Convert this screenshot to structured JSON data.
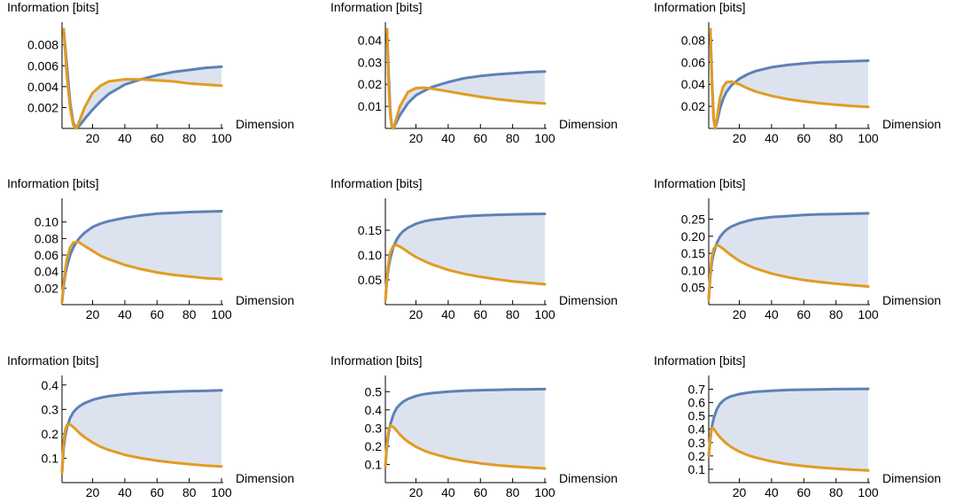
{
  "colors": {
    "blue": "#5e81b5",
    "orange": "#e19c24",
    "fill": "#dce3ef"
  },
  "chart_data": [
    {
      "type": "line",
      "ylabel": "Information [bits]",
      "xlabel": "Dimension",
      "xlim": [
        1,
        100
      ],
      "ylim": [
        0,
        0.0095
      ],
      "xticks": [
        20,
        40,
        60,
        80,
        100
      ],
      "yticks": [
        0.002,
        0.004,
        0.006,
        0.008
      ],
      "ytick_labels": [
        "0.002",
        "0.004",
        "0.006",
        "0.008"
      ],
      "series": [
        {
          "x": [
            2,
            4,
            6,
            8,
            10,
            12,
            15,
            20,
            25,
            30,
            40,
            50,
            60,
            70,
            80,
            90,
            100
          ],
          "values": [
            0.0095,
            0.006,
            0.0025,
            0.0005,
            0,
            0.0003,
            0.0009,
            0.0018,
            0.0026,
            0.0033,
            0.0042,
            0.0047,
            0.0051,
            0.0054,
            0.0056,
            0.0058,
            0.0059
          ]
        },
        {
          "x": [
            2,
            4,
            6,
            8,
            10,
            12,
            15,
            20,
            25,
            30,
            40,
            50,
            60,
            70,
            80,
            90,
            100
          ],
          "values": [
            0.0095,
            0.005,
            0.002,
            0.0003,
            0,
            0.0008,
            0.002,
            0.0034,
            0.0041,
            0.0045,
            0.0047,
            0.0047,
            0.0046,
            0.0045,
            0.0043,
            0.0042,
            0.0041
          ]
        }
      ]
    },
    {
      "type": "line",
      "ylabel": "Information [bits]",
      "xlabel": "Dimension",
      "xlim": [
        1,
        100
      ],
      "ylim": [
        0,
        0.045
      ],
      "xticks": [
        20,
        40,
        60,
        80,
        100
      ],
      "yticks": [
        0.01,
        0.02,
        0.03,
        0.04
      ],
      "ytick_labels": [
        "0.01",
        "0.02",
        "0.03",
        "0.04"
      ],
      "series": [
        {
          "x": [
            2,
            3,
            4,
            5,
            6,
            8,
            10,
            15,
            20,
            25,
            30,
            40,
            50,
            60,
            70,
            80,
            90,
            100
          ],
          "values": [
            0.045,
            0.025,
            0.008,
            0.001,
            0,
            0.003,
            0.006,
            0.0115,
            0.015,
            0.017,
            0.0188,
            0.021,
            0.0228,
            0.0238,
            0.0245,
            0.025,
            0.0255,
            0.0258
          ]
        },
        {
          "x": [
            2,
            3,
            4,
            5,
            6,
            8,
            10,
            15,
            20,
            25,
            30,
            40,
            50,
            60,
            70,
            80,
            90,
            100
          ],
          "values": [
            0.045,
            0.02,
            0.006,
            0.001,
            0,
            0.005,
            0.01,
            0.0165,
            0.0183,
            0.0185,
            0.018,
            0.0168,
            0.0155,
            0.0143,
            0.0133,
            0.0125,
            0.0118,
            0.0113
          ]
        }
      ]
    },
    {
      "type": "line",
      "ylabel": "Information [bits]",
      "xlabel": "Dimension",
      "xlim": [
        1,
        100
      ],
      "ylim": [
        0,
        0.09
      ],
      "xticks": [
        20,
        40,
        60,
        80,
        100
      ],
      "yticks": [
        0.02,
        0.04,
        0.06,
        0.08
      ],
      "ytick_labels": [
        "0.02",
        "0.04",
        "0.06",
        "0.08"
      ],
      "series": [
        {
          "x": [
            2,
            3,
            4,
            5,
            6,
            8,
            10,
            12,
            15,
            20,
            25,
            30,
            40,
            50,
            60,
            70,
            80,
            90,
            100
          ],
          "values": [
            0.09,
            0.045,
            0.01,
            0,
            0.005,
            0.018,
            0.027,
            0.033,
            0.039,
            0.045,
            0.049,
            0.052,
            0.0555,
            0.0575,
            0.059,
            0.06,
            0.0605,
            0.061,
            0.0615
          ]
        },
        {
          "x": [
            2,
            3,
            4,
            5,
            6,
            8,
            10,
            12,
            15,
            20,
            25,
            30,
            40,
            50,
            60,
            70,
            80,
            90,
            100
          ],
          "values": [
            0.09,
            0.04,
            0.008,
            0,
            0.008,
            0.028,
            0.038,
            0.042,
            0.0425,
            0.04,
            0.0365,
            0.0335,
            0.0295,
            0.0265,
            0.0245,
            0.0228,
            0.0215,
            0.0203,
            0.0195
          ]
        }
      ]
    },
    {
      "type": "line",
      "ylabel": "Information [bits]",
      "xlabel": "Dimension",
      "xlim": [
        1,
        100
      ],
      "ylim": [
        0,
        0.12
      ],
      "xticks": [
        20,
        40,
        60,
        80,
        100
      ],
      "yticks": [
        0.02,
        0.04,
        0.06,
        0.08,
        0.1
      ],
      "ytick_labels": [
        "0.02",
        "0.04",
        "0.06",
        "0.08",
        "0.10"
      ],
      "series": [
        {
          "x": [
            1,
            2,
            3,
            4,
            6,
            8,
            10,
            12,
            15,
            20,
            25,
            30,
            40,
            50,
            60,
            70,
            80,
            90,
            100
          ],
          "values": [
            0.003,
            0.022,
            0.036,
            0.046,
            0.06,
            0.069,
            0.076,
            0.081,
            0.087,
            0.094,
            0.098,
            0.101,
            0.105,
            0.108,
            0.11,
            0.111,
            0.112,
            0.1125,
            0.113
          ]
        },
        {
          "x": [
            1,
            2,
            3,
            4,
            6,
            8,
            10,
            12,
            15,
            20,
            25,
            30,
            40,
            50,
            60,
            70,
            80,
            90,
            100
          ],
          "values": [
            0.003,
            0.025,
            0.042,
            0.055,
            0.069,
            0.075,
            0.076,
            0.075,
            0.071,
            0.065,
            0.059,
            0.055,
            0.048,
            0.043,
            0.039,
            0.036,
            0.034,
            0.032,
            0.031
          ]
        }
      ]
    },
    {
      "type": "line",
      "ylabel": "Information [bits]",
      "xlabel": "Dimension",
      "xlim": [
        1,
        100
      ],
      "ylim": [
        0,
        0.2
      ],
      "xticks": [
        20,
        40,
        60,
        80,
        100
      ],
      "yticks": [
        0.05,
        0.1,
        0.15
      ],
      "ytick_labels": [
        "0.05",
        "0.10",
        "0.15"
      ],
      "series": [
        {
          "x": [
            1,
            2,
            3,
            4,
            6,
            8,
            10,
            12,
            15,
            20,
            25,
            30,
            40,
            50,
            60,
            70,
            80,
            90,
            100
          ],
          "values": [
            0.008,
            0.05,
            0.075,
            0.093,
            0.117,
            0.131,
            0.141,
            0.148,
            0.155,
            0.163,
            0.168,
            0.171,
            0.175,
            0.178,
            0.18,
            0.181,
            0.182,
            0.1825,
            0.183
          ]
        },
        {
          "x": [
            1,
            2,
            3,
            4,
            6,
            8,
            10,
            12,
            15,
            20,
            25,
            30,
            40,
            50,
            60,
            70,
            80,
            90,
            100
          ],
          "values": [
            0.008,
            0.055,
            0.085,
            0.105,
            0.119,
            0.12,
            0.117,
            0.113,
            0.106,
            0.096,
            0.088,
            0.081,
            0.07,
            0.062,
            0.056,
            0.051,
            0.047,
            0.044,
            0.041
          ]
        }
      ]
    },
    {
      "type": "line",
      "ylabel": "Information [bits]",
      "xlabel": "Dimension",
      "xlim": [
        1,
        100
      ],
      "ylim": [
        0,
        0.29
      ],
      "xticks": [
        20,
        40,
        60,
        80,
        100
      ],
      "yticks": [
        0.05,
        0.1,
        0.15,
        0.2,
        0.25
      ],
      "ytick_labels": [
        "0.05",
        "0.10",
        "0.15",
        "0.20",
        "0.25"
      ],
      "series": [
        {
          "x": [
            1,
            2,
            3,
            4,
            6,
            8,
            10,
            12,
            15,
            20,
            25,
            30,
            40,
            50,
            60,
            70,
            80,
            90,
            100
          ],
          "values": [
            0.015,
            0.085,
            0.125,
            0.15,
            0.18,
            0.198,
            0.21,
            0.219,
            0.228,
            0.238,
            0.245,
            0.25,
            0.256,
            0.259,
            0.262,
            0.264,
            0.265,
            0.266,
            0.267
          ]
        },
        {
          "x": [
            1,
            2,
            3,
            4,
            6,
            8,
            10,
            12,
            15,
            20,
            25,
            30,
            40,
            50,
            60,
            70,
            80,
            90,
            100
          ],
          "values": [
            0.015,
            0.095,
            0.14,
            0.163,
            0.174,
            0.17,
            0.163,
            0.155,
            0.144,
            0.128,
            0.116,
            0.106,
            0.091,
            0.08,
            0.072,
            0.066,
            0.061,
            0.057,
            0.053
          ]
        }
      ]
    },
    {
      "type": "line",
      "ylabel": "Information [bits]",
      "xlabel": "Dimension",
      "xlim": [
        1,
        100
      ],
      "ylim": [
        0,
        0.41
      ],
      "xticks": [
        20,
        40,
        60,
        80,
        100
      ],
      "yticks": [
        0.1,
        0.2,
        0.3,
        0.4
      ],
      "ytick_labels": [
        "0.1",
        "0.2",
        "0.3",
        "0.4"
      ],
      "series": [
        {
          "x": [
            1,
            2,
            3,
            4,
            6,
            8,
            10,
            12,
            15,
            20,
            25,
            30,
            40,
            50,
            60,
            70,
            80,
            90,
            100
          ],
          "values": [
            0.04,
            0.14,
            0.19,
            0.225,
            0.265,
            0.288,
            0.303,
            0.314,
            0.326,
            0.339,
            0.348,
            0.354,
            0.362,
            0.367,
            0.37,
            0.373,
            0.375,
            0.376,
            0.378
          ]
        },
        {
          "x": [
            1,
            2,
            3,
            4,
            6,
            8,
            10,
            12,
            15,
            20,
            25,
            30,
            40,
            50,
            60,
            70,
            80,
            90,
            100
          ],
          "values": [
            0.04,
            0.16,
            0.215,
            0.237,
            0.238,
            0.228,
            0.215,
            0.202,
            0.186,
            0.164,
            0.147,
            0.134,
            0.114,
            0.1,
            0.09,
            0.082,
            0.076,
            0.07,
            0.066
          ]
        }
      ]
    },
    {
      "type": "line",
      "ylabel": "Information [bits]",
      "xlabel": "Dimension",
      "xlim": [
        1,
        100
      ],
      "ylim": [
        0,
        0.55
      ],
      "xticks": [
        20,
        40,
        60,
        80,
        100
      ],
      "yticks": [
        0.1,
        0.2,
        0.3,
        0.4,
        0.5
      ],
      "ytick_labels": [
        "0.1",
        "0.2",
        "0.3",
        "0.4",
        "0.5"
      ],
      "series": [
        {
          "x": [
            1,
            2,
            3,
            4,
            6,
            8,
            10,
            12,
            15,
            20,
            25,
            30,
            40,
            50,
            60,
            70,
            80,
            90,
            100
          ],
          "values": [
            0.09,
            0.2,
            0.27,
            0.32,
            0.375,
            0.41,
            0.43,
            0.445,
            0.46,
            0.476,
            0.486,
            0.492,
            0.5,
            0.505,
            0.508,
            0.51,
            0.512,
            0.513,
            0.514
          ]
        },
        {
          "x": [
            1,
            2,
            3,
            4,
            6,
            8,
            10,
            12,
            15,
            20,
            25,
            30,
            40,
            50,
            60,
            70,
            80,
            90,
            100
          ],
          "values": [
            0.09,
            0.22,
            0.29,
            0.315,
            0.305,
            0.285,
            0.265,
            0.247,
            0.225,
            0.197,
            0.176,
            0.16,
            0.136,
            0.119,
            0.106,
            0.096,
            0.089,
            0.083,
            0.078
          ]
        }
      ]
    },
    {
      "type": "line",
      "ylabel": "Information [bits]",
      "xlabel": "Dimension",
      "xlim": [
        1,
        100
      ],
      "ylim": [
        0,
        0.75
      ],
      "xticks": [
        20,
        40,
        60,
        80,
        100
      ],
      "yticks": [
        0.1,
        0.2,
        0.3,
        0.4,
        0.5,
        0.6,
        0.7
      ],
      "ytick_labels": [
        "0.1",
        "0.2",
        "0.3",
        "0.4",
        "0.5",
        "0.6",
        "0.7"
      ],
      "series": [
        {
          "x": [
            1,
            2,
            3,
            4,
            6,
            8,
            10,
            12,
            15,
            20,
            25,
            30,
            40,
            50,
            60,
            70,
            80,
            90,
            100
          ],
          "values": [
            0.2,
            0.33,
            0.42,
            0.48,
            0.55,
            0.59,
            0.615,
            0.632,
            0.648,
            0.664,
            0.674,
            0.681,
            0.689,
            0.694,
            0.697,
            0.699,
            0.701,
            0.702,
            0.703
          ]
        },
        {
          "x": [
            1,
            2,
            3,
            4,
            6,
            8,
            10,
            12,
            15,
            20,
            25,
            30,
            40,
            50,
            60,
            70,
            80,
            90,
            100
          ],
          "values": [
            0.2,
            0.35,
            0.41,
            0.405,
            0.37,
            0.34,
            0.315,
            0.293,
            0.266,
            0.232,
            0.207,
            0.188,
            0.159,
            0.139,
            0.124,
            0.113,
            0.104,
            0.097,
            0.091
          ]
        }
      ]
    }
  ]
}
